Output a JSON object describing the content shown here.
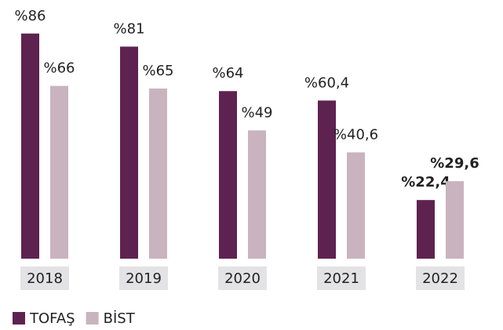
{
  "chart_data": {
    "type": "bar",
    "categories": [
      "2018",
      "2019",
      "2020",
      "2021",
      "2022"
    ],
    "series": [
      {
        "name": "TOFAŞ",
        "color": "#5e2250",
        "values": [
          86,
          81,
          64,
          60.4,
          22.4
        ],
        "value_labels": [
          "%86",
          "%81",
          "%64",
          "%60,4",
          "%22,4"
        ]
      },
      {
        "name": "BİST",
        "color": "#c9b3bf",
        "values": [
          66,
          65,
          49,
          40.6,
          29.6
        ],
        "value_labels": [
          "%66",
          "%65",
          "%49",
          "%40,6",
          "%29,6"
        ]
      }
    ],
    "value_label_bold": [
      false,
      false,
      false,
      false,
      true
    ]
  }
}
